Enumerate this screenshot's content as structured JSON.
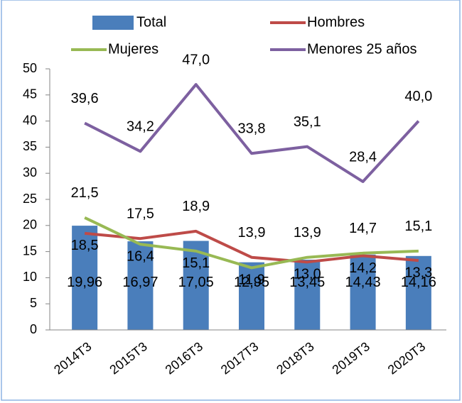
{
  "chart_data": {
    "type": "bar-line",
    "categories": [
      "2014T3",
      "2015T3",
      "2016T3",
      "2017T3",
      "2018T3",
      "2019T3",
      "2020T3"
    ],
    "series": [
      {
        "name": "Total",
        "type": "bar",
        "color": "#4a7ebb",
        "values": [
          19.96,
          16.97,
          17.05,
          12.95,
          13.45,
          14.43,
          14.16
        ],
        "value_labels": [
          "19,96",
          "16,97",
          "17,05",
          "12,95",
          "13,45",
          "14,43",
          "14,16"
        ]
      },
      {
        "name": "Hombres",
        "type": "line",
        "color": "#be4b48",
        "values": [
          18.5,
          17.5,
          18.9,
          13.9,
          13.0,
          14.2,
          13.3
        ],
        "value_labels": [
          "18,5",
          "17,5",
          "18,9",
          "13,9",
          "13,0",
          "14,2",
          "13,3"
        ]
      },
      {
        "name": "Mujeres",
        "type": "line",
        "color": "#98b954",
        "values": [
          21.5,
          16.4,
          15.1,
          11.9,
          13.9,
          14.7,
          15.1
        ],
        "value_labels": [
          "21,5",
          "16,4",
          "15,1",
          "11,9",
          "13,9",
          "14,7",
          "15,1"
        ]
      },
      {
        "name": "Menores 25 años",
        "type": "line",
        "color": "#7d60a0",
        "values": [
          39.6,
          34.2,
          47.0,
          33.8,
          35.1,
          28.4,
          40.0
        ],
        "value_labels": [
          "39,6",
          "34,2",
          "47,0",
          "33,8",
          "35,1",
          "28,4",
          "40,0"
        ]
      }
    ],
    "ylim": [
      0,
      50
    ],
    "yticks": [
      0,
      5,
      10,
      15,
      20,
      25,
      30,
      35,
      40,
      45,
      50
    ],
    "legend": "top"
  }
}
